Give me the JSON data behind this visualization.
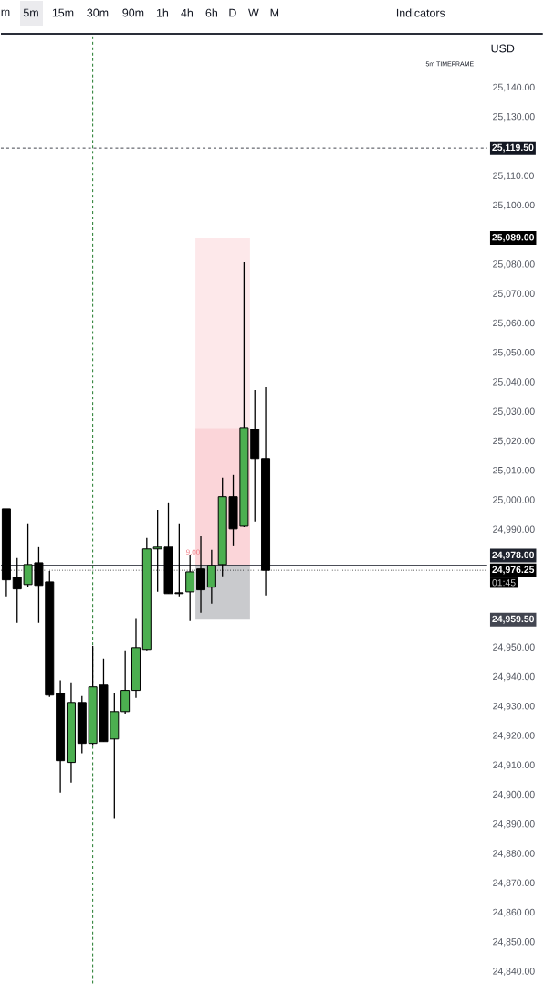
{
  "chart_data": {
    "type": "candlestick",
    "categories": [
      null,
      null,
      null,
      null,
      null,
      null,
      null,
      null,
      null,
      null,
      null,
      null,
      null,
      null,
      null,
      null,
      null,
      null,
      null,
      null,
      null,
      null,
      null,
      null,
      null,
      null,
      null,
      null,
      null,
      null,
      null,
      null,
      null,
      null,
      null,
      null,
      null,
      null,
      null,
      null,
      null,
      null,
      null,
      null,
      null
    ],
    "ohlc": [
      [
        24997.1,
        24997.1,
        24967.4,
        24973.0
      ],
      [
        24973.9,
        24980.4,
        24958.4,
        24969.9
      ],
      [
        24971.4,
        24992.2,
        24970.5,
        24978.2
      ],
      [
        24978.8,
        24984.1,
        24958.4,
        24971.1
      ],
      [
        24972.3,
        24976.0,
        24933.3,
        24933.9
      ],
      [
        24934.5,
        24938.9,
        24900.7,
        24911.6
      ],
      [
        24911.0,
        24937.9,
        24904.1,
        24931.4
      ],
      [
        24931.4,
        24933.6,
        24914.1,
        24917.5
      ],
      [
        24917.5,
        24950.6,
        24916.9,
        24936.7
      ],
      [
        24937.3,
        24946.3,
        24918.1,
        24918.1
      ],
      [
        24919.0,
        24934.5,
        24892.1,
        24928.3
      ],
      [
        24928.3,
        24949.1,
        24927.4,
        24935.5
      ],
      [
        24935.5,
        24960.0,
        24933.0,
        24950.0
      ],
      [
        24949.4,
        24987.2,
        24949.1,
        24983.5
      ],
      [
        24983.5,
        24996.8,
        24968.9,
        24984.1
      ],
      [
        24984.1,
        24999.3,
        24968.3,
        24968.3
      ],
      [
        24968.6,
        24992.2,
        24967.4,
        24968.3
      ],
      [
        24968.9,
        24981.6,
        24959.0,
        24975.7
      ],
      [
        24976.7,
        24987.8,
        24961.8,
        24969.6
      ],
      [
        24970.5,
        24983.2,
        24964.9,
        24977.9
      ],
      [
        24978.2,
        25007.7,
        24974.2,
        25001.2
      ],
      [
        25001.2,
        25008.6,
        24984.4,
        24990.3
      ],
      [
        24991.2,
        25080.8,
        24990.9,
        25024.7
      ],
      [
        25024.1,
        25037.4,
        24992.8,
        25014.2
      ],
      [
        25014.2,
        25038.3,
        24967.7,
        24976.25
      ],
      null,
      null,
      null,
      null,
      null,
      null,
      null,
      null,
      null,
      null,
      null,
      null,
      null,
      null,
      null,
      null,
      null,
      null,
      null,
      null
    ],
    "colors": [
      "#000000",
      "#000000",
      "#4caf50",
      "#000000",
      "#000000",
      "#000000",
      "#4caf50",
      "#000000",
      "#4caf50",
      "#000000",
      "#4caf50",
      "#4caf50",
      "#4caf50",
      "#4caf50",
      "#4caf50",
      "#000000",
      "#000000",
      "#4caf50",
      "#000000",
      "#4caf50",
      "#4caf50",
      "#000000",
      "#4caf50",
      "#000000",
      "#000000",
      null,
      null,
      null,
      null,
      null,
      null,
      null,
      null,
      null,
      null,
      null,
      null,
      null,
      null,
      null,
      null,
      null,
      null,
      null,
      null
    ],
    "ylim": [
      24836,
      25158
    ],
    "yticks": [
      {
        "value": 25140,
        "label": "25,140.00"
      },
      {
        "value": 25130,
        "label": "25,130.00"
      },
      {
        "value": 25110,
        "label": "25,110.00"
      },
      {
        "value": 25100,
        "label": "25,100.00"
      },
      {
        "value": 25080,
        "label": "25,080.00"
      },
      {
        "value": 25070,
        "label": "25,070.00"
      },
      {
        "value": 25060,
        "label": "25,060.00"
      },
      {
        "value": 25050,
        "label": "25,050.00"
      },
      {
        "value": 25040,
        "label": "25,040.00"
      },
      {
        "value": 25030,
        "label": "25,030.00"
      },
      {
        "value": 25020,
        "label": "25,020.00"
      },
      {
        "value": 25010,
        "label": "25,010.00"
      },
      {
        "value": 25000,
        "label": "25,000.00"
      },
      {
        "value": 24990,
        "label": "24,990.00"
      },
      {
        "value": 24950,
        "label": "24,950.00"
      },
      {
        "value": 24940,
        "label": "24,940.00"
      },
      {
        "value": 24930,
        "label": "24,930.00"
      },
      {
        "value": 24920,
        "label": "24,920.00"
      },
      {
        "value": 24910,
        "label": "24,910.00"
      },
      {
        "value": 24900,
        "label": "24,900.00"
      },
      {
        "value": 24890,
        "label": "24,890.00"
      },
      {
        "value": 24880,
        "label": "24,880.00"
      },
      {
        "value": 24870,
        "label": "24,870.00"
      },
      {
        "value": 24860,
        "label": "24,860.00"
      },
      {
        "value": 24850,
        "label": "24,850.00"
      },
      {
        "value": 24840,
        "label": "24,840.00"
      }
    ],
    "ref_lines": [
      {
        "axis": "y",
        "value": 25119.5,
        "label": "25,119.50",
        "color": "#131722",
        "line_style": "dashed"
      },
      {
        "axis": "y",
        "value": 25089,
        "label": "25,089.00",
        "color": "#000000",
        "line_style": "solid"
      },
      {
        "axis": "y",
        "value": 24978,
        "label": "24,978.00",
        "color": "#1e222d",
        "line_style": "solid"
      },
      {
        "axis": "y",
        "value": 24976.25,
        "label": "24,976.25",
        "color": "#000000",
        "line_style": "dotted"
      }
    ],
    "bands": [
      {
        "axis": "y",
        "from": 24978,
        "to": 25089,
        "color": "#fde8ea"
      },
      {
        "axis": "y",
        "from": 24978,
        "to": 25024.5,
        "color": "#fbd5d9"
      },
      {
        "axis": "y",
        "from": 24959.5,
        "to": 24978,
        "color": "#c9cacd"
      }
    ],
    "annotations": [
      "m",
      "5m",
      "15m",
      "30m",
      "90m",
      "1h",
      "4h",
      "6h",
      "D",
      "W",
      "M",
      "Indicators",
      "USD",
      "5m TIMEFRAME",
      "9.00",
      "01:45",
      "24,959.50"
    ]
  }
}
